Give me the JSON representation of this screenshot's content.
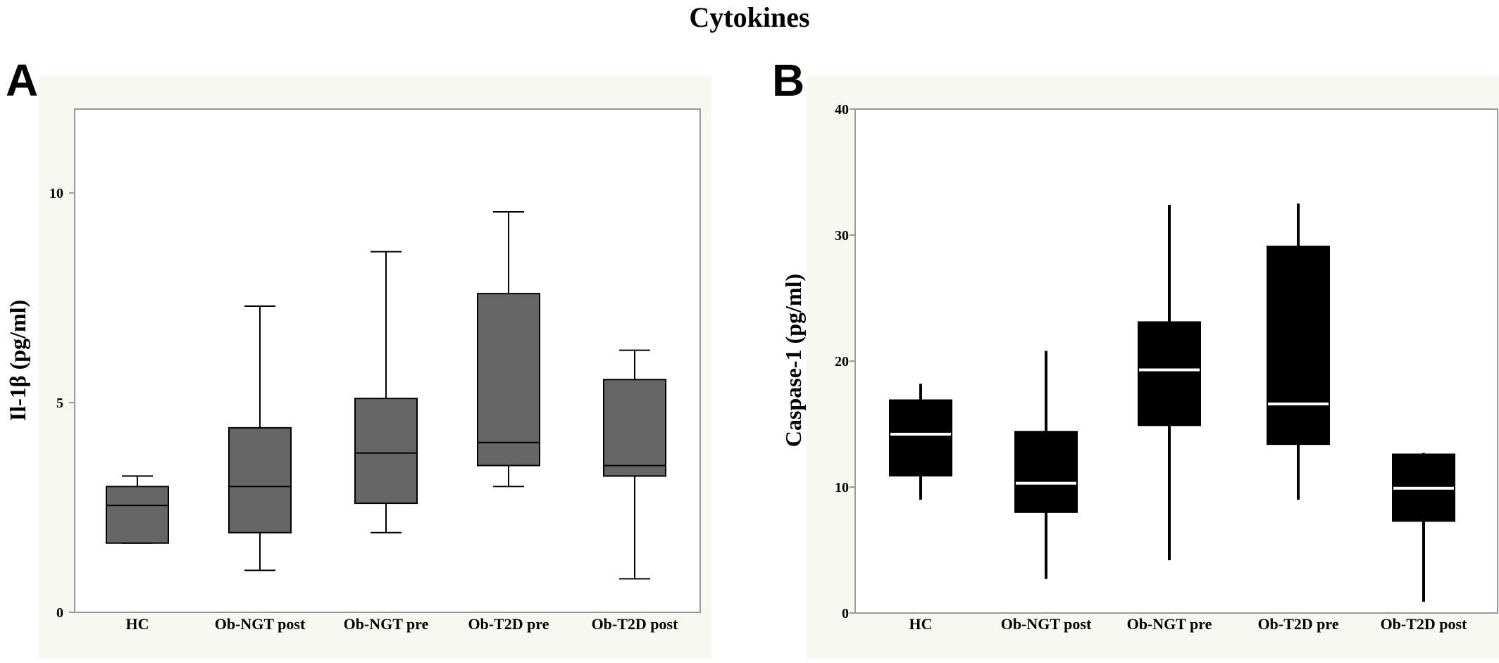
{
  "figure": {
    "title": "Cytokines"
  },
  "chart_data": [
    {
      "type": "box",
      "panel_label": "A",
      "title": "",
      "xlabel": "",
      "ylabel": "Il-1β (pg/ml)",
      "ylim": [
        0,
        12
      ],
      "yticks": [
        "0",
        "5",
        "10"
      ],
      "ytick_values": [
        0,
        5,
        10
      ],
      "categories": [
        "HC",
        "Ob-NGT post",
        "Ob-NGT pre",
        "Ob-T2D  pre",
        "Ob-T2D post"
      ],
      "boxes": [
        {
          "min": 1.65,
          "q1": 1.65,
          "median": 2.55,
          "q3": 3.0,
          "max": 3.25
        },
        {
          "min": 1.0,
          "q1": 1.9,
          "median": 3.0,
          "q3": 4.4,
          "max": 7.3
        },
        {
          "min": 1.9,
          "q1": 2.6,
          "median": 3.8,
          "q3": 5.1,
          "max": 8.6
        },
        {
          "min": 3.0,
          "q1": 3.5,
          "median": 4.05,
          "q3": 7.6,
          "max": 9.55
        },
        {
          "min": 0.8,
          "q1": 3.25,
          "median": 3.5,
          "q3": 5.55,
          "max": 6.25
        }
      ],
      "colors": {
        "box_fill": "#666666",
        "box_stroke": "#000000",
        "median": "#000000"
      }
    },
    {
      "type": "box",
      "panel_label": "B",
      "title": "",
      "xlabel": "",
      "ylabel": "Caspase-1 (pg/ml)",
      "ylim": [
        0,
        40
      ],
      "yticks": [
        "0",
        "10",
        "20",
        "30",
        "40"
      ],
      "ytick_values": [
        0,
        10,
        20,
        30,
        40
      ],
      "categories": [
        "HC",
        "Ob-NGT post",
        "Ob-NGT pre",
        "Ob-T2D  pre",
        "Ob-T2D post"
      ],
      "boxes": [
        {
          "min": 9.0,
          "q1": 10.9,
          "median": 14.2,
          "q3": 16.9,
          "max": 18.2
        },
        {
          "min": 2.7,
          "q1": 8.0,
          "median": 10.3,
          "q3": 14.4,
          "max": 20.8
        },
        {
          "min": 4.2,
          "q1": 14.9,
          "median": 19.3,
          "q3": 23.1,
          "max": 32.4
        },
        {
          "min": 9.0,
          "q1": 13.4,
          "median": 16.6,
          "q3": 29.1,
          "max": 32.5
        },
        {
          "min": 0.9,
          "q1": 7.3,
          "median": 9.9,
          "q3": 12.6,
          "max": 12.7
        }
      ],
      "colors": {
        "box_fill": "#000000",
        "box_stroke": "#000000",
        "median": "#ffffff"
      }
    }
  ]
}
